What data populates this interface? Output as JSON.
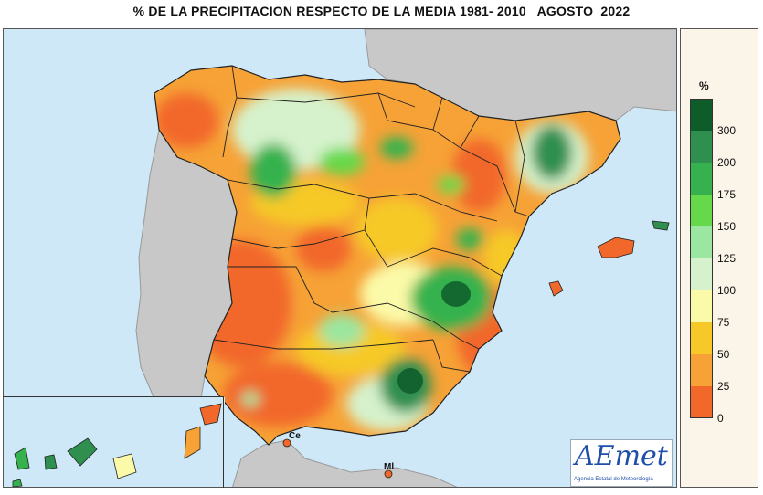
{
  "title": "% DE LA PRECIPITACION RESPECTO DE LA MEDIA 1981- 2010   AGOSTO  2022",
  "legend": {
    "unit": "%",
    "classes": [
      {
        "label": "300",
        "color": "#0d5c2a"
      },
      {
        "label": "200",
        "color": "#2f8f4f"
      },
      {
        "label": "175",
        "color": "#35b24d"
      },
      {
        "label": "150",
        "color": "#66d94a"
      },
      {
        "label": "125",
        "color": "#9be6a0"
      },
      {
        "label": "100",
        "color": "#d6f2cc"
      },
      {
        "label": "75",
        "color": "#fbfaa8"
      },
      {
        "label": "50",
        "color": "#f6c928"
      },
      {
        "label": "25",
        "color": "#f6a236"
      },
      {
        "label": "0",
        "color": "#f2682a"
      }
    ]
  },
  "cities": {
    "ceuta": "Ce",
    "melilla": "Ml"
  },
  "logo": {
    "name": "AEmet",
    "subtitle": "Agencia Estatal de Meteorología"
  },
  "colors": {
    "sea": "#cfe8f8",
    "land_other": "#c8c8c8",
    "borders": "#222222"
  }
}
